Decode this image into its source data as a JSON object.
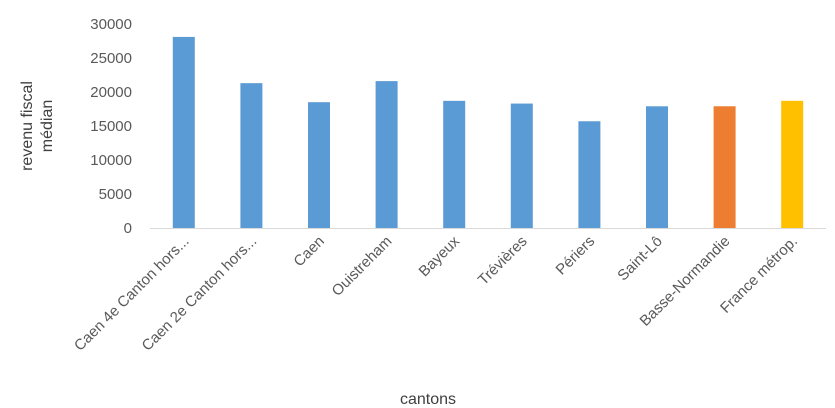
{
  "chart_data": {
    "type": "bar",
    "categories": [
      "Caen 4e Canton hors...",
      "Caen 2e Canton hors...",
      "Caen",
      "Ouistreham",
      "Bayeux",
      "Trévières",
      "Périers",
      "Saint-Lô",
      "Basse-Normandie",
      "France métrop."
    ],
    "values": [
      28100,
      21300,
      18500,
      21600,
      18700,
      18300,
      15700,
      17900,
      17900,
      18700
    ],
    "colors": [
      "#5b9bd5",
      "#5b9bd5",
      "#5b9bd5",
      "#5b9bd5",
      "#5b9bd5",
      "#5b9bd5",
      "#5b9bd5",
      "#5b9bd5",
      "#ed7d31",
      "#ffc000"
    ],
    "xlabel": "cantons",
    "ylabel": [
      "revenu fiscal",
      "médian"
    ],
    "ylim": [
      0,
      30000
    ],
    "yticks": [
      "0",
      "5000",
      "10000",
      "15000",
      "20000",
      "25000",
      "30000"
    ],
    "grid": false,
    "legend": "none"
  }
}
